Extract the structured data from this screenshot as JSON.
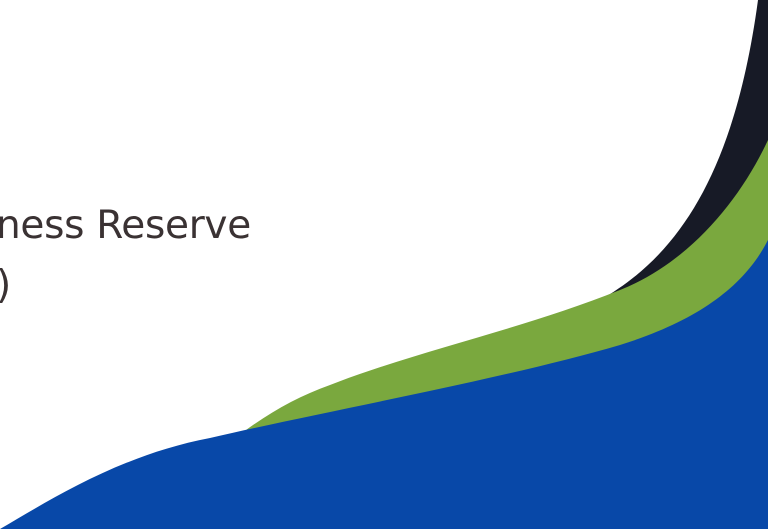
{
  "slide": {
    "title_line_1": "ness Reserve",
    "title_line_2": ")"
  },
  "colors": {
    "background": "#ffffff",
    "text": "#3a3233",
    "wave_dark": "#171a26",
    "wave_green": "#7aa83e",
    "wave_blue": "#0848a8"
  }
}
